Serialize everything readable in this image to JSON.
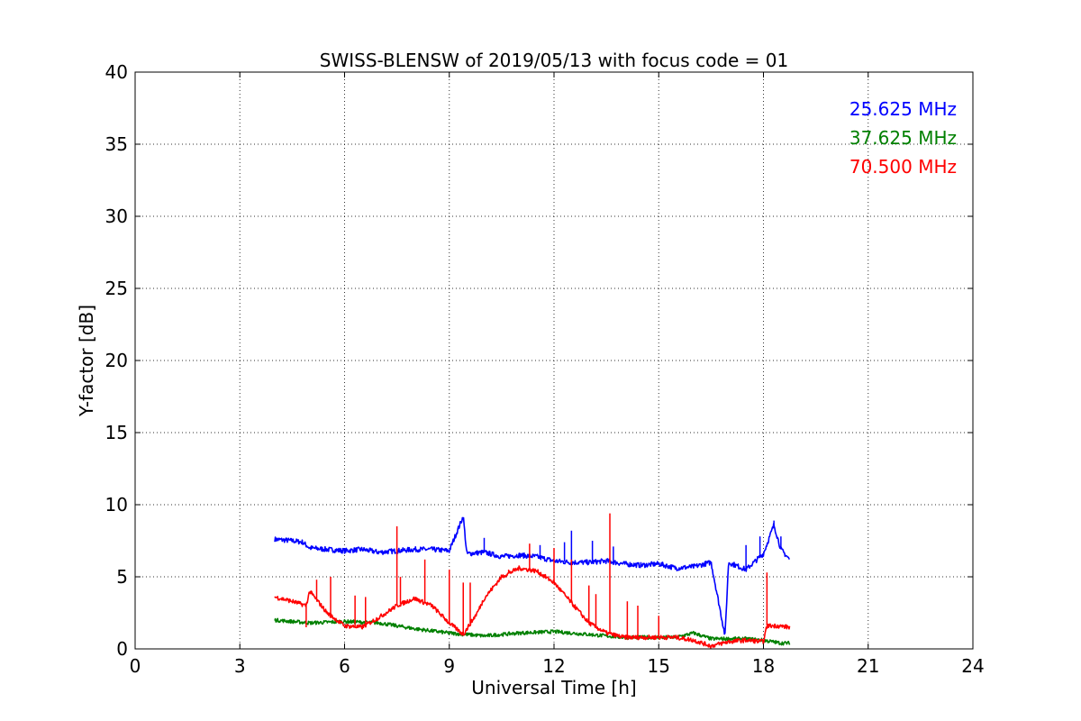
{
  "chart_data": {
    "type": "line",
    "title": "SWISS-BLENSW of 2019/05/13 with focus code = 01",
    "xlabel": "Universal Time [h]",
    "ylabel": "Y-factor [dB]",
    "xlim": [
      0,
      24
    ],
    "ylim": [
      0,
      40
    ],
    "xticks": [
      0,
      3,
      6,
      9,
      12,
      15,
      18,
      21,
      24
    ],
    "yticks": [
      0,
      5,
      10,
      15,
      20,
      25,
      30,
      35,
      40
    ],
    "grid": true,
    "legend_position": "top-right",
    "series": [
      {
        "name": "25.625 MHz",
        "color": "#0000ff",
        "x": [
          4.0,
          4.5,
          4.8,
          5.0,
          5.5,
          6.0,
          6.5,
          7.0,
          7.5,
          8.0,
          8.5,
          9.0,
          9.4,
          9.5,
          10.0,
          10.5,
          11.0,
          11.5,
          12.0,
          12.5,
          13.0,
          13.5,
          14.0,
          14.5,
          15.0,
          15.5,
          16.0,
          16.5,
          16.9,
          17.0,
          17.5,
          18.0,
          18.3,
          18.5,
          18.75
        ],
        "y": [
          7.6,
          7.5,
          7.4,
          7.0,
          6.9,
          6.8,
          6.9,
          6.7,
          6.8,
          6.9,
          6.9,
          6.8,
          9.2,
          6.6,
          6.7,
          6.4,
          6.5,
          6.4,
          6.1,
          6.0,
          6.0,
          6.1,
          5.9,
          5.8,
          5.9,
          5.6,
          5.7,
          6.0,
          0.9,
          6.0,
          5.5,
          6.6,
          8.6,
          6.9,
          6.2
        ]
      },
      {
        "name": "37.625 MHz",
        "color": "#008000",
        "x": [
          4.0,
          5.0,
          6.0,
          7.0,
          8.0,
          9.0,
          9.5,
          10.0,
          11.0,
          12.0,
          13.0,
          14.0,
          15.0,
          15.5,
          16.0,
          16.5,
          17.0,
          17.5,
          18.0,
          18.5,
          18.75
        ],
        "y": [
          2.0,
          1.8,
          1.9,
          1.8,
          1.4,
          1.1,
          1.0,
          0.9,
          1.1,
          1.2,
          1.0,
          0.8,
          0.8,
          0.8,
          1.1,
          0.7,
          0.7,
          0.7,
          0.6,
          0.4,
          0.4
        ]
      },
      {
        "name": "70.500 MHz",
        "color": "#ff0000",
        "x": [
          4.0,
          4.5,
          4.9,
          5.0,
          5.5,
          6.0,
          6.5,
          7.0,
          7.5,
          8.0,
          8.5,
          9.0,
          9.4,
          9.8,
          10.0,
          10.5,
          11.0,
          11.5,
          12.0,
          12.5,
          13.0,
          13.5,
          14.0,
          14.5,
          15.0,
          15.5,
          16.0,
          16.5,
          17.0,
          17.5,
          18.0,
          18.1,
          18.4,
          18.75
        ],
        "y": [
          3.6,
          3.3,
          3.0,
          4.0,
          2.5,
          1.6,
          1.5,
          2.2,
          3.0,
          3.5,
          3.0,
          1.8,
          1.0,
          2.5,
          3.5,
          5.0,
          5.6,
          5.4,
          4.6,
          3.2,
          1.8,
          1.1,
          0.8,
          0.8,
          0.8,
          0.8,
          0.6,
          0.2,
          0.5,
          0.6,
          0.5,
          1.6,
          1.6,
          1.5
        ]
      }
    ],
    "spikes": [
      {
        "series": 0,
        "x": 9.4,
        "y": 9.2
      },
      {
        "series": 0,
        "x": 10.0,
        "y": 7.7
      },
      {
        "series": 0,
        "x": 11.6,
        "y": 7.2
      },
      {
        "series": 0,
        "x": 12.5,
        "y": 8.2
      },
      {
        "series": 0,
        "x": 12.3,
        "y": 7.4
      },
      {
        "series": 0,
        "x": 13.1,
        "y": 7.5
      },
      {
        "series": 0,
        "x": 13.7,
        "y": 7.1
      },
      {
        "series": 0,
        "x": 16.9,
        "y": 0.9
      },
      {
        "series": 0,
        "x": 17.5,
        "y": 7.2
      },
      {
        "series": 0,
        "x": 17.9,
        "y": 7.8
      },
      {
        "series": 0,
        "x": 18.3,
        "y": 8.9
      },
      {
        "series": 0,
        "x": 18.5,
        "y": 7.8
      },
      {
        "series": 2,
        "x": 4.9,
        "y": 1.5
      },
      {
        "series": 2,
        "x": 5.2,
        "y": 4.8
      },
      {
        "series": 2,
        "x": 5.6,
        "y": 5.0
      },
      {
        "series": 2,
        "x": 6.3,
        "y": 3.7
      },
      {
        "series": 2,
        "x": 6.6,
        "y": 3.6
      },
      {
        "series": 2,
        "x": 7.5,
        "y": 8.5
      },
      {
        "series": 2,
        "x": 7.6,
        "y": 5.0
      },
      {
        "series": 2,
        "x": 8.3,
        "y": 6.2
      },
      {
        "series": 2,
        "x": 9.0,
        "y": 5.5
      },
      {
        "series": 2,
        "x": 9.4,
        "y": 4.6
      },
      {
        "series": 2,
        "x": 9.6,
        "y": 4.6
      },
      {
        "series": 2,
        "x": 10.7,
        "y": 5.5
      },
      {
        "series": 2,
        "x": 11.3,
        "y": 7.3
      },
      {
        "series": 2,
        "x": 12.0,
        "y": 7.0
      },
      {
        "series": 2,
        "x": 12.5,
        "y": 6.2
      },
      {
        "series": 2,
        "x": 13.0,
        "y": 4.4
      },
      {
        "series": 2,
        "x": 13.6,
        "y": 9.4
      },
      {
        "series": 2,
        "x": 13.2,
        "y": 3.8
      },
      {
        "series": 2,
        "x": 14.1,
        "y": 3.3
      },
      {
        "series": 2,
        "x": 14.4,
        "y": 3.0
      },
      {
        "series": 2,
        "x": 15.0,
        "y": 2.3
      },
      {
        "series": 2,
        "x": 18.1,
        "y": 5.3
      }
    ]
  }
}
